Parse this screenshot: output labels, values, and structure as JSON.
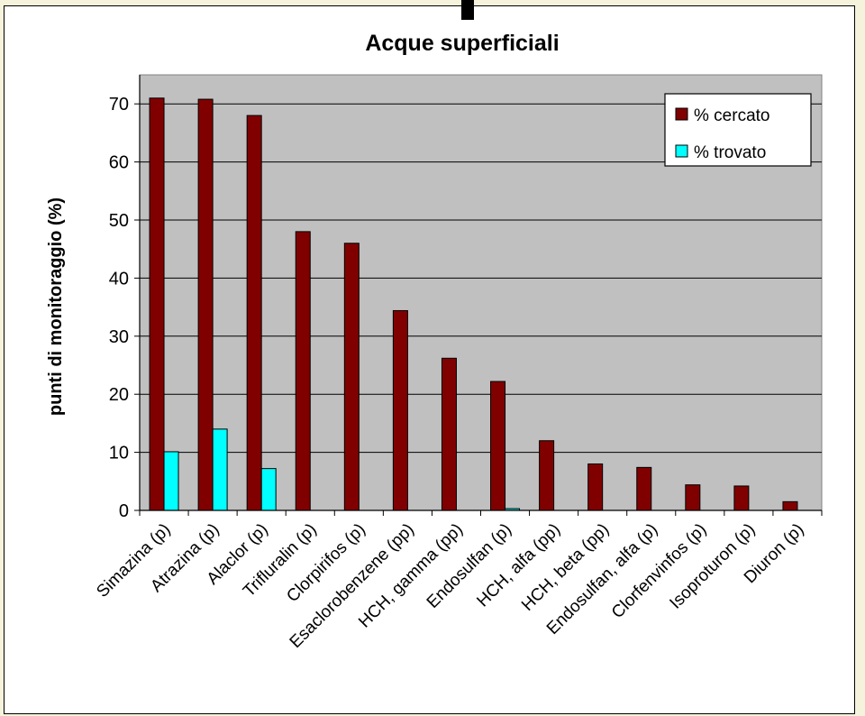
{
  "chart_data": {
    "type": "bar",
    "title": "Acque superficiali",
    "xlabel": "",
    "ylabel": "punti di monitoraggio (%)",
    "ylim": [
      0,
      70
    ],
    "yticks": [
      0,
      10,
      20,
      30,
      40,
      50,
      60,
      70
    ],
    "grid": true,
    "legend_position": "top-right",
    "plot_background": "#c0c0c0",
    "categories": [
      "Simazina (p)",
      "Atrazina (p)",
      "Alaclor (p)",
      "Trifluralin (p)",
      "Clorpirifos (p)",
      "Esaclorobenzene (pp)",
      "HCH, gamma (pp)",
      "Endosulfan (p)",
      "HCH, alfa (pp)",
      "HCH, beta (pp)",
      "Endosulfan, alfa (p)",
      "Clorfenvinfos (p)",
      "Isoproturon (p)",
      "Diuron (p)"
    ],
    "series": [
      {
        "name": "% cercato",
        "color": "#800000",
        "values": [
          71,
          70.8,
          68,
          48,
          46,
          34.4,
          26.2,
          22.2,
          12,
          8,
          7.4,
          4.4,
          4.2,
          1.5
        ]
      },
      {
        "name": "% trovato",
        "color": "#00ffff",
        "values": [
          10.1,
          14,
          7.2,
          0,
          0,
          0,
          0,
          0.3,
          0,
          0,
          0,
          0,
          0,
          0
        ]
      }
    ]
  }
}
